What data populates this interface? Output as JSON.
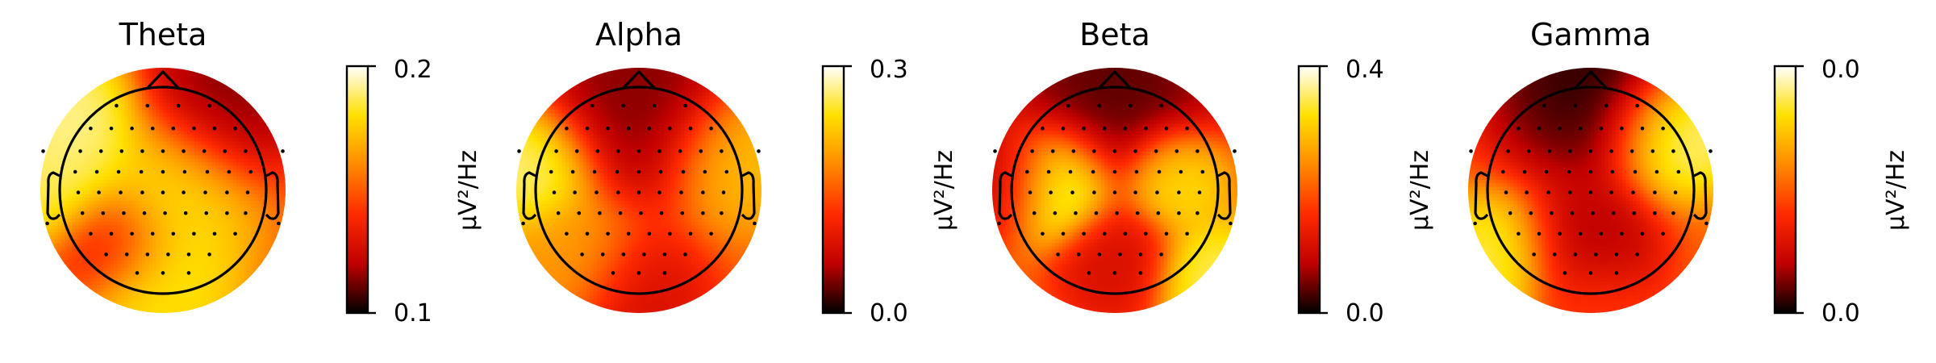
{
  "chart_data": [
    {
      "type": "heatmap",
      "subtype": "eeg-topomap",
      "title": "Theta",
      "colormap": "hot",
      "colorbar": {
        "min_label": "0.1",
        "max_label": "0.2",
        "unit": "µV²/Hz"
      },
      "color_stops": [
        "#000000",
        "#c00000",
        "#ff2a00",
        "#ff8a00",
        "#ffe000",
        "#ffffff"
      ],
      "hotspots": [
        {
          "x": -0.75,
          "y": 0.55,
          "level": 0.95,
          "spread": 0.3
        },
        {
          "x": -0.85,
          "y": 0.05,
          "level": 0.9,
          "spread": 0.28
        },
        {
          "x": 0.05,
          "y": 0.0,
          "level": 0.8,
          "spread": 0.35
        },
        {
          "x": -0.05,
          "y": -0.65,
          "level": 0.85,
          "spread": 0.32
        },
        {
          "x": -0.05,
          "y": -1.0,
          "level": 0.8,
          "spread": 0.25
        },
        {
          "x": 0.5,
          "y": 0.75,
          "level": 0.1,
          "spread": 0.35
        },
        {
          "x": -0.4,
          "y": -0.45,
          "level": 0.2,
          "spread": 0.25
        }
      ]
    },
    {
      "type": "heatmap",
      "subtype": "eeg-topomap",
      "title": "Alpha",
      "colormap": "hot",
      "colorbar": {
        "min_label": "0.0",
        "max_label": "0.3",
        "unit": "µV²/Hz"
      },
      "color_stops": [
        "#000000",
        "#c00000",
        "#ff2a00",
        "#ff8a00",
        "#ffe000",
        "#ffffff"
      ],
      "hotspots": [
        {
          "x": -0.9,
          "y": 0.2,
          "level": 0.95,
          "spread": 0.28
        },
        {
          "x": 0.0,
          "y": 0.85,
          "level": 0.1,
          "spread": 0.45
        },
        {
          "x": 0.0,
          "y": -0.95,
          "level": 0.25,
          "spread": 0.3
        },
        {
          "x": 0.85,
          "y": 0.3,
          "level": 0.75,
          "spread": 0.3
        },
        {
          "x": -0.6,
          "y": -0.6,
          "level": 0.65,
          "spread": 0.3
        }
      ]
    },
    {
      "type": "heatmap",
      "subtype": "eeg-topomap",
      "title": "Beta",
      "colormap": "hot",
      "colorbar": {
        "min_label": "0.0",
        "max_label": "0.4",
        "unit": "µV²/Hz"
      },
      "color_stops": [
        "#000000",
        "#c00000",
        "#ff2a00",
        "#ff8a00",
        "#ffe000",
        "#ffffff"
      ],
      "hotspots": [
        {
          "x": -0.5,
          "y": 0.05,
          "level": 1.0,
          "spread": 0.25
        },
        {
          "x": 0.5,
          "y": 0.1,
          "level": 0.85,
          "spread": 0.22
        },
        {
          "x": 0.8,
          "y": -0.75,
          "level": 0.9,
          "spread": 0.25
        },
        {
          "x": 0.0,
          "y": 0.9,
          "level": 0.05,
          "spread": 0.45
        },
        {
          "x": -0.9,
          "y": 0.1,
          "level": 0.15,
          "spread": 0.25
        },
        {
          "x": 0.0,
          "y": -0.6,
          "level": 0.25,
          "spread": 0.25
        }
      ]
    },
    {
      "type": "heatmap",
      "subtype": "eeg-topomap",
      "title": "Gamma",
      "colormap": "hot",
      "colorbar": {
        "min_label": "0.0",
        "max_label": "0.0",
        "unit": "µV²/Hz"
      },
      "color_stops": [
        "#000000",
        "#c00000",
        "#ff2a00",
        "#ff8a00",
        "#ffe000",
        "#ffffff"
      ],
      "hotspots": [
        {
          "x": 0.7,
          "y": 0.5,
          "level": 1.0,
          "spread": 0.28
        },
        {
          "x": -0.75,
          "y": -0.6,
          "level": 0.9,
          "spread": 0.28
        },
        {
          "x": 0.0,
          "y": 0.95,
          "level": 0.0,
          "spread": 0.45
        },
        {
          "x": -0.05,
          "y": -0.5,
          "level": 0.15,
          "spread": 0.3
        },
        {
          "x": 0.0,
          "y": -0.95,
          "level": 0.45,
          "spread": 0.25
        }
      ]
    }
  ]
}
